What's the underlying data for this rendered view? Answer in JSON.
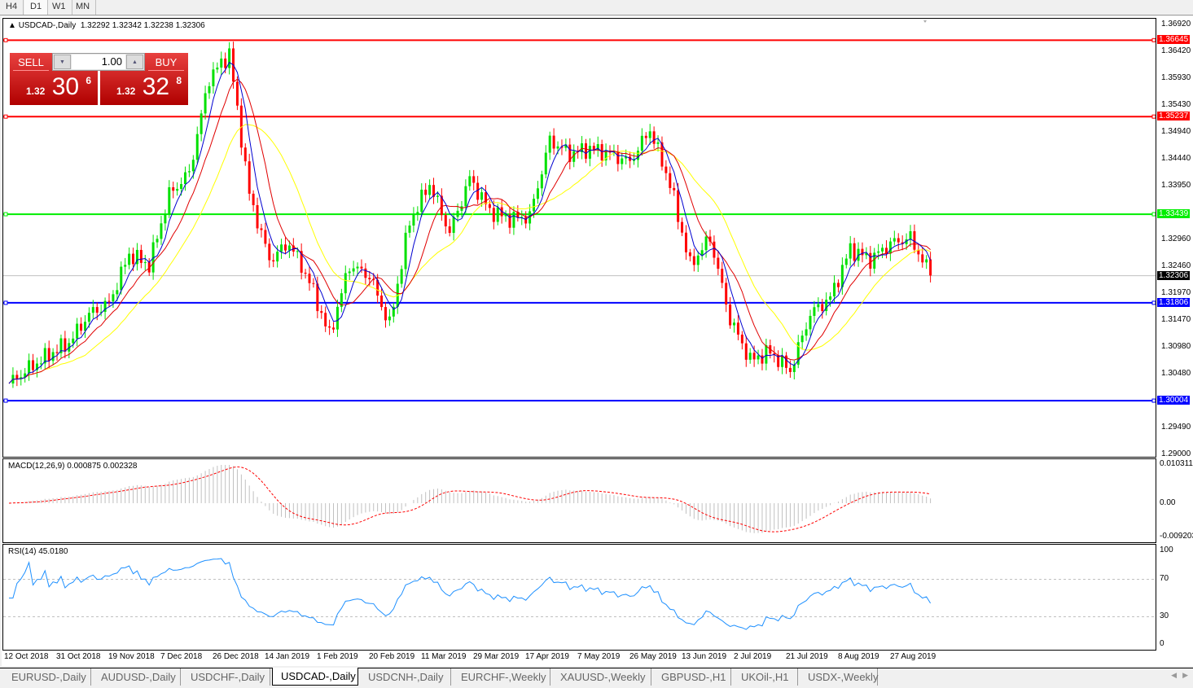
{
  "timeframes": [
    "H4",
    "D1",
    "W1",
    "MN"
  ],
  "active_timeframe": "D1",
  "chart": {
    "title": "USDCAD-,Daily",
    "ohlc": "1.32292 1.32342 1.32238 1.32306"
  },
  "trade_panel": {
    "sell_label": "SELL",
    "buy_label": "BUY",
    "lot": "1.00",
    "sell_prefix": "1.32",
    "sell_big": "30",
    "sell_sup": "6",
    "buy_prefix": "1.32",
    "buy_big": "32",
    "buy_sup": "8"
  },
  "colors": {
    "bull": "#00e000",
    "bear": "#ff0000",
    "ma_fast": "#0000d0",
    "ma_mid": "#e00000",
    "ma_slow": "#ffff00",
    "resistance": "#ff0000",
    "pivot": "#00ee00",
    "support": "#0000ff"
  },
  "price_axis": [
    "1.36920",
    "1.36420",
    "1.35930",
    "1.35430",
    "1.34940",
    "1.34440",
    "1.33950",
    "1.32960",
    "1.32460",
    "1.31970",
    "1.31470",
    "1.30980",
    "1.30480",
    "1.29490",
    "1.29000"
  ],
  "levels": [
    {
      "value": 1.36645,
      "label": "1.36645",
      "color": "#ff0000"
    },
    {
      "value": 1.35237,
      "label": "1.35237",
      "color": "#ff0000"
    },
    {
      "value": 1.33439,
      "label": "1.33439",
      "color": "#00ee00"
    },
    {
      "value": 1.31806,
      "label": "1.31806",
      "color": "#0000ff"
    },
    {
      "value": 1.30004,
      "label": "1.30004",
      "color": "#0000ff"
    }
  ],
  "current_price": {
    "value": 1.32306,
    "label": "1.32306"
  },
  "macd": {
    "title": "MACD(12,26,9) 0.000875 0.002328",
    "axis": [
      "0.010311",
      "0.00",
      "-0.009203"
    ]
  },
  "rsi": {
    "title": "RSI(14) 45.0180",
    "axis": [
      "100",
      "70",
      "30",
      "0"
    ],
    "levels": [
      70,
      30
    ]
  },
  "date_axis": [
    "12 Oct 2018",
    "31 Oct 2018",
    "19 Nov 2018",
    "7 Dec 2018",
    "26 Dec 2018",
    "14 Jan 2019",
    "1 Feb 2019",
    "20 Feb 2019",
    "11 Mar 2019",
    "29 Mar 2019",
    "17 Apr 2019",
    "7 May 2019",
    "26 May 2019",
    "13 Jun 2019",
    "2 Jul 2019",
    "21 Jul 2019",
    "8 Aug 2019",
    "27 Aug 2019"
  ],
  "tabs": [
    "EURUSD-,Daily",
    "AUDUSD-,Daily",
    "USDCHF-,Daily",
    "USDCAD-,Daily",
    "USDCNH-,Daily",
    "EURCHF-,Weekly",
    "XAUUSD-,Weekly",
    "GBPUSD-,H1",
    "UKOil-,H1",
    "USDX-,Weekly"
  ],
  "active_tab": "USDCAD-,Daily",
  "chart_data": {
    "type": "candlestick",
    "symbol": "USDCAD",
    "timeframe": "Daily",
    "ylim": [
      1.29,
      1.3692
    ],
    "closes_every_5_days": [
      1.3032,
      1.306,
      1.3085,
      1.3107,
      1.316,
      1.318,
      1.327,
      1.325,
      1.338,
      1.342,
      1.3595,
      1.364,
      1.338,
      1.326,
      1.329,
      1.322,
      1.312,
      1.325,
      1.323,
      1.314,
      1.333,
      1.34,
      1.331,
      1.341,
      1.335,
      1.3335,
      1.334,
      1.348,
      1.3455,
      1.3465,
      1.3455,
      1.344,
      1.35,
      1.34,
      1.325,
      1.33,
      1.315,
      1.3075,
      1.309,
      1.3055,
      1.316,
      1.319,
      1.328,
      1.326,
      1.329,
      1.33,
      1.3231
    ]
  }
}
